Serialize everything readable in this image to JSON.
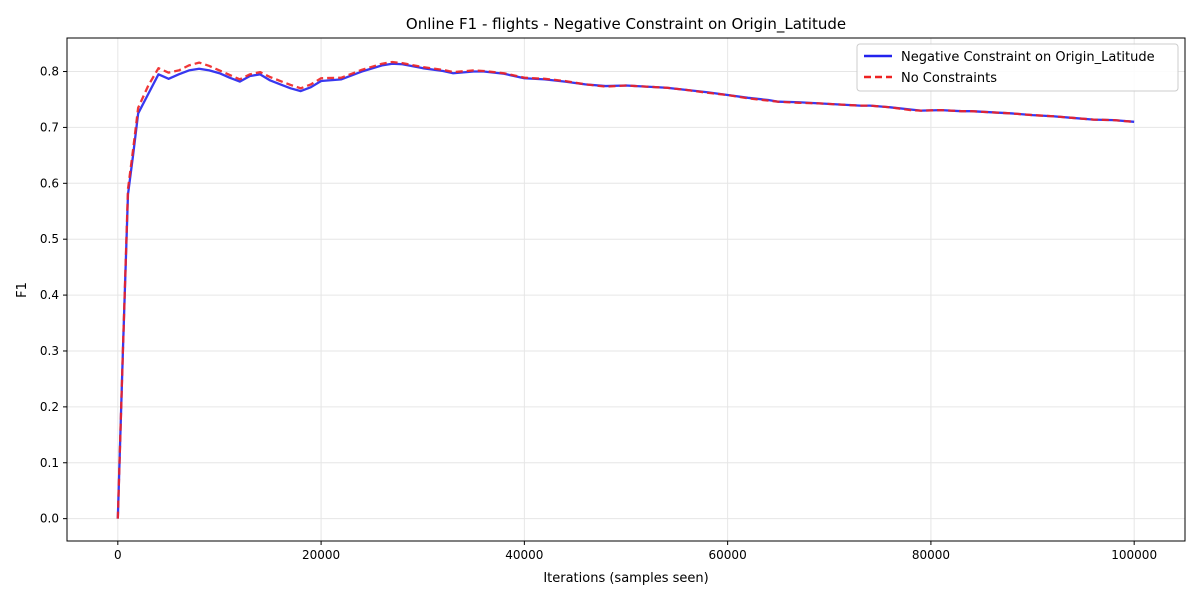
{
  "chart_data": {
    "type": "line",
    "title": "Online F1 - flights - Negative Constraint on Origin_Latitude",
    "xlabel": "Iterations (samples seen)",
    "ylabel": "F1",
    "xlim": [
      -5000,
      105000
    ],
    "ylim": [
      -0.04,
      0.86
    ],
    "xticks": [
      0,
      20000,
      40000,
      60000,
      80000,
      100000
    ],
    "yticks": [
      0.0,
      0.1,
      0.2,
      0.3,
      0.4,
      0.5,
      0.6,
      0.7,
      0.8
    ],
    "xtick_labels": [
      "0",
      "20000",
      "40000",
      "60000",
      "80000",
      "100000"
    ],
    "ytick_labels": [
      "0.0",
      "0.1",
      "0.2",
      "0.3",
      "0.4",
      "0.5",
      "0.6",
      "0.7",
      "0.8"
    ],
    "grid": true,
    "legend_position": "top-right",
    "series": [
      {
        "name": "Negative Constraint on Origin_Latitude",
        "color": "#2222ee",
        "style": "solid",
        "x": [
          0,
          500,
          1000,
          1500,
          2000,
          3000,
          4000,
          5000,
          6000,
          7000,
          8000,
          9000,
          10000,
          11000,
          12000,
          13000,
          14000,
          15000,
          16000,
          17000,
          18000,
          19000,
          20000,
          22000,
          24000,
          26000,
          27000,
          28000,
          30000,
          32000,
          33000,
          35000,
          36000,
          38000,
          40000,
          42000,
          44000,
          46000,
          48000,
          50000,
          52000,
          54000,
          56000,
          58000,
          60000,
          62000,
          64000,
          65000,
          67000,
          69000,
          71000,
          73000,
          74000,
          76000,
          78000,
          79000,
          81000,
          83000,
          84000,
          86000,
          88000,
          90000,
          92000,
          94000,
          96000,
          98000,
          100000
        ],
        "y": [
          0.0,
          0.3,
          0.58,
          0.65,
          0.725,
          0.76,
          0.795,
          0.787,
          0.795,
          0.802,
          0.805,
          0.802,
          0.797,
          0.789,
          0.782,
          0.792,
          0.795,
          0.784,
          0.777,
          0.77,
          0.765,
          0.772,
          0.783,
          0.786,
          0.8,
          0.811,
          0.814,
          0.813,
          0.806,
          0.801,
          0.797,
          0.8,
          0.8,
          0.796,
          0.788,
          0.786,
          0.782,
          0.777,
          0.774,
          0.775,
          0.773,
          0.771,
          0.767,
          0.763,
          0.758,
          0.753,
          0.749,
          0.746,
          0.745,
          0.743,
          0.741,
          0.739,
          0.739,
          0.736,
          0.732,
          0.73,
          0.731,
          0.729,
          0.729,
          0.727,
          0.725,
          0.722,
          0.72,
          0.717,
          0.714,
          0.713,
          0.71
        ]
      },
      {
        "name": "No Constraints",
        "color": "#ee2222",
        "style": "dashed",
        "x": [
          0,
          500,
          1000,
          1500,
          2000,
          3000,
          4000,
          5000,
          6000,
          7000,
          8000,
          9000,
          10000,
          11000,
          12000,
          13000,
          14000,
          15000,
          16000,
          17000,
          18000,
          19000,
          20000,
          22000,
          24000,
          26000,
          27000,
          28000,
          30000,
          32000,
          33000,
          35000,
          36000,
          38000,
          40000,
          42000,
          44000,
          46000,
          48000,
          50000,
          52000,
          54000,
          56000,
          58000,
          60000,
          62000,
          64000,
          65000,
          67000,
          69000,
          71000,
          73000,
          74000,
          76000,
          78000,
          79000,
          81000,
          83000,
          84000,
          86000,
          88000,
          90000,
          92000,
          94000,
          96000,
          98000,
          100000
        ],
        "y": [
          0.0,
          0.3,
          0.59,
          0.66,
          0.735,
          0.775,
          0.806,
          0.798,
          0.802,
          0.811,
          0.816,
          0.81,
          0.802,
          0.794,
          0.786,
          0.795,
          0.799,
          0.79,
          0.783,
          0.776,
          0.77,
          0.777,
          0.788,
          0.789,
          0.803,
          0.814,
          0.817,
          0.815,
          0.808,
          0.803,
          0.799,
          0.802,
          0.801,
          0.797,
          0.789,
          0.787,
          0.783,
          0.777,
          0.773,
          0.775,
          0.773,
          0.771,
          0.767,
          0.762,
          0.758,
          0.752,
          0.748,
          0.746,
          0.744,
          0.743,
          0.741,
          0.739,
          0.739,
          0.736,
          0.731,
          0.73,
          0.731,
          0.729,
          0.729,
          0.727,
          0.725,
          0.722,
          0.72,
          0.717,
          0.714,
          0.713,
          0.71
        ]
      }
    ]
  }
}
